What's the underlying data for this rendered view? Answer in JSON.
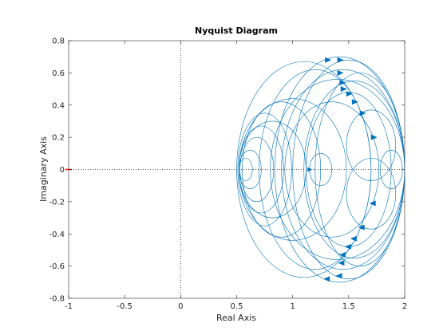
{
  "chart_data": {
    "type": "line",
    "title": "Nyquist Diagram",
    "xlabel": "Real Axis",
    "ylabel": "Imaginary Axis",
    "xlim": [
      -1,
      2
    ],
    "ylim": [
      -0.8,
      0.8
    ],
    "xticks": [
      -1,
      -0.5,
      0,
      0.5,
      1,
      1.5,
      2
    ],
    "xtick_labels": [
      "-1",
      "-0.5",
      "0",
      "0.5",
      "1",
      "1.5",
      "2"
    ],
    "yticks": [
      -0.8,
      -0.6,
      -0.4,
      -0.2,
      0,
      0.2,
      0.4,
      0.6,
      0.8
    ],
    "ytick_labels": [
      "-0.8",
      "-0.6",
      "-0.4",
      "-0.2",
      "0",
      "0.2",
      "0.4",
      "0.6",
      "0.8"
    ],
    "grid": false,
    "critical_point": [
      -1,
      0
    ],
    "colors": {
      "curve": "#0072bd",
      "critical": "#ff0000",
      "axes": "#262626"
    },
    "loops": [
      {
        "cx": 1.5,
        "cy": 0,
        "rx": 0.5,
        "ry": 0.68
      },
      {
        "cx": 1.45,
        "cy": 0,
        "rx": 0.55,
        "ry": 0.62
      },
      {
        "cx": 1.4,
        "cy": 0,
        "rx": 0.6,
        "ry": 0.56
      },
      {
        "cx": 1.55,
        "cy": 0,
        "rx": 0.45,
        "ry": 0.55
      },
      {
        "cx": 1.5,
        "cy": 0,
        "rx": 0.38,
        "ry": 0.48
      },
      {
        "cx": 1.35,
        "cy": 0,
        "rx": 0.42,
        "ry": 0.42
      },
      {
        "cx": 1.2,
        "cy": 0,
        "rx": 0.5,
        "ry": 0.62
      },
      {
        "cx": 1.1,
        "cy": 0,
        "rx": 0.6,
        "ry": 0.67
      },
      {
        "cx": 1.0,
        "cy": 0,
        "rx": 0.48,
        "ry": 0.44
      },
      {
        "cx": 0.75,
        "cy": 0,
        "rx": 0.24,
        "ry": 0.35
      },
      {
        "cx": 0.72,
        "cy": 0,
        "rx": 0.2,
        "ry": 0.27
      },
      {
        "cx": 0.68,
        "cy": 0,
        "rx": 0.15,
        "ry": 0.2
      },
      {
        "cx": 0.62,
        "cy": 0,
        "rx": 0.1,
        "ry": 0.12
      },
      {
        "cx": 0.58,
        "cy": 0,
        "rx": 0.06,
        "ry": 0.07
      },
      {
        "cx": 0.9,
        "cy": 0,
        "rx": 0.35,
        "ry": 0.42
      },
      {
        "cx": 1.25,
        "cy": 0,
        "rx": 0.1,
        "ry": 0.1
      },
      {
        "cx": 1.7,
        "cy": 0.15,
        "rx": 0.22,
        "ry": 0.22
      },
      {
        "cx": 1.7,
        "cy": -0.15,
        "rx": 0.22,
        "ry": 0.22
      },
      {
        "cx": 1.88,
        "cy": 0,
        "rx": 0.1,
        "ry": 0.12
      },
      {
        "cx": 1.6,
        "cy": 0,
        "rx": 0.4,
        "ry": 0.6
      },
      {
        "cx": 1.42,
        "cy": 0,
        "rx": 0.58,
        "ry": 0.7
      },
      {
        "cx": 0.82,
        "cy": 0,
        "rx": 0.3,
        "ry": 0.3
      }
    ],
    "arrows": [
      {
        "x": 1.31,
        "y": 0.68,
        "dir": 1
      },
      {
        "x": 1.42,
        "y": 0.68,
        "dir": 1
      },
      {
        "x": 1.42,
        "y": 0.6,
        "dir": 1
      },
      {
        "x": 1.44,
        "y": 0.54,
        "dir": 1
      },
      {
        "x": 1.45,
        "y": 0.5,
        "dir": 1
      },
      {
        "x": 1.5,
        "y": 0.47,
        "dir": 1
      },
      {
        "x": 1.55,
        "y": 0.42,
        "dir": 1
      },
      {
        "x": 1.62,
        "y": 0.35,
        "dir": 1
      },
      {
        "x": 1.72,
        "y": 0.2,
        "dir": 1
      },
      {
        "x": 1.31,
        "y": -0.68,
        "dir": -1
      },
      {
        "x": 1.42,
        "y": -0.66,
        "dir": -1
      },
      {
        "x": 1.44,
        "y": -0.58,
        "dir": -1
      },
      {
        "x": 1.45,
        "y": -0.53,
        "dir": -1
      },
      {
        "x": 1.5,
        "y": -0.48,
        "dir": -1
      },
      {
        "x": 1.55,
        "y": -0.43,
        "dir": -1
      },
      {
        "x": 1.62,
        "y": -0.36,
        "dir": -1
      },
      {
        "x": 1.72,
        "y": -0.21,
        "dir": -1
      },
      {
        "x": 1.16,
        "y": 0,
        "dir": 0
      }
    ]
  }
}
